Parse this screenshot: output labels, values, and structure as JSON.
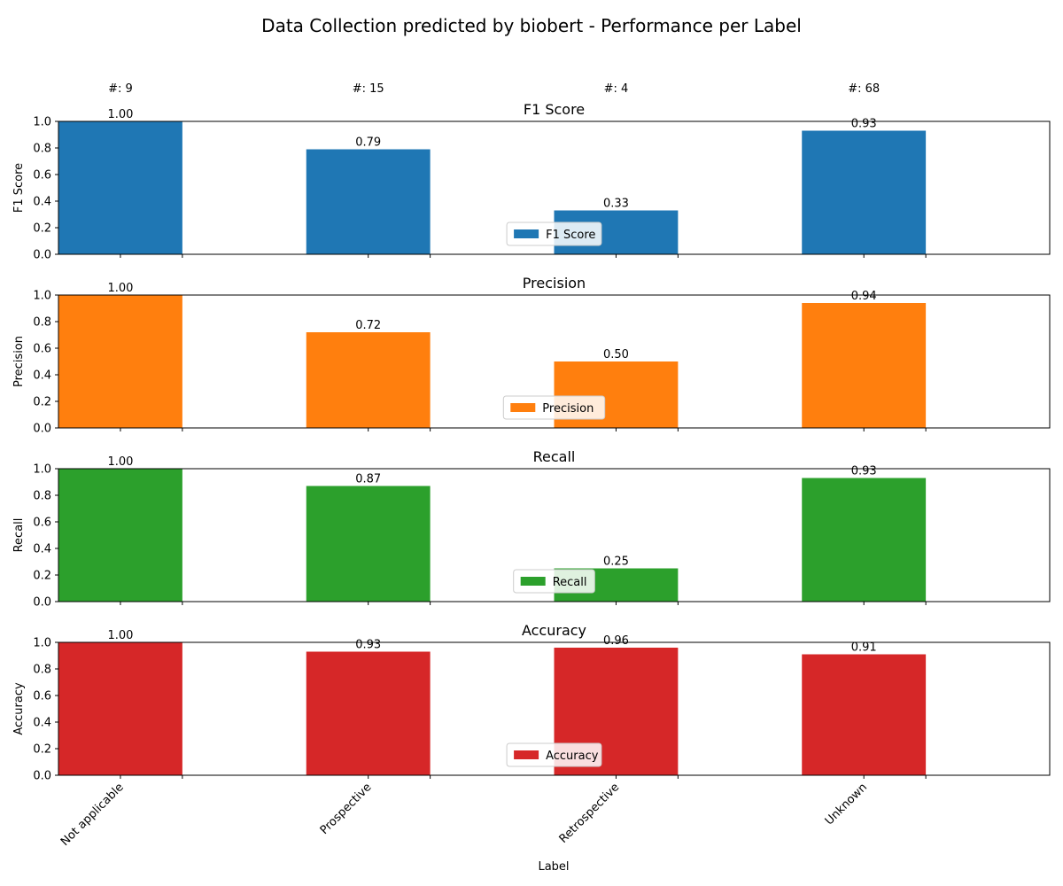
{
  "title": "Data Collection predicted by biobert - Performance per Label",
  "xlabel": "Label",
  "counts": [
    "#: 9",
    "#: 15",
    "#: 4",
    "#: 68"
  ],
  "chart_data": [
    {
      "type": "bar",
      "title": "F1 Score",
      "ylabel": "F1 Score",
      "legend": "F1 Score",
      "legend_position": "bottom-center",
      "color": "#1f77b4",
      "categories": [
        "Not applicable",
        "Prospective",
        "Retrospective",
        "Unknown"
      ],
      "values": [
        1.0,
        0.79,
        0.33,
        0.93
      ],
      "value_labels": [
        "1.00",
        "0.79",
        "0.33",
        "0.93"
      ],
      "ylim": [
        0,
        1
      ],
      "yticks": [
        "0.0",
        "0.2",
        "0.4",
        "0.6",
        "0.8",
        "1.0"
      ],
      "grid": false
    },
    {
      "type": "bar",
      "title": "Precision",
      "ylabel": "Precision",
      "legend": "Precision",
      "legend_position": "bottom-center",
      "color": "#ff7f0e",
      "categories": [
        "Not applicable",
        "Prospective",
        "Retrospective",
        "Unknown"
      ],
      "values": [
        1.0,
        0.72,
        0.5,
        0.94
      ],
      "value_labels": [
        "1.00",
        "0.72",
        "0.50",
        "0.94"
      ],
      "ylim": [
        0,
        1
      ],
      "yticks": [
        "0.0",
        "0.2",
        "0.4",
        "0.6",
        "0.8",
        "1.0"
      ],
      "grid": false
    },
    {
      "type": "bar",
      "title": "Recall",
      "ylabel": "Recall",
      "legend": "Recall",
      "legend_position": "bottom-center",
      "color": "#2ca02c",
      "categories": [
        "Not applicable",
        "Prospective",
        "Retrospective",
        "Unknown"
      ],
      "values": [
        1.0,
        0.87,
        0.25,
        0.93
      ],
      "value_labels": [
        "1.00",
        "0.87",
        "0.25",
        "0.93"
      ],
      "ylim": [
        0,
        1
      ],
      "yticks": [
        "0.0",
        "0.2",
        "0.4",
        "0.6",
        "0.8",
        "1.0"
      ],
      "grid": false
    },
    {
      "type": "bar",
      "title": "Accuracy",
      "ylabel": "Accuracy",
      "legend": "Accuracy",
      "legend_position": "bottom-center",
      "color": "#d62728",
      "categories": [
        "Not applicable",
        "Prospective",
        "Retrospective",
        "Unknown"
      ],
      "values": [
        1.0,
        0.93,
        0.96,
        0.91
      ],
      "value_labels": [
        "1.00",
        "0.93",
        "0.96",
        "0.91"
      ],
      "ylim": [
        0,
        1
      ],
      "yticks": [
        "0.0",
        "0.2",
        "0.4",
        "0.6",
        "0.8",
        "1.0"
      ],
      "grid": false
    }
  ]
}
